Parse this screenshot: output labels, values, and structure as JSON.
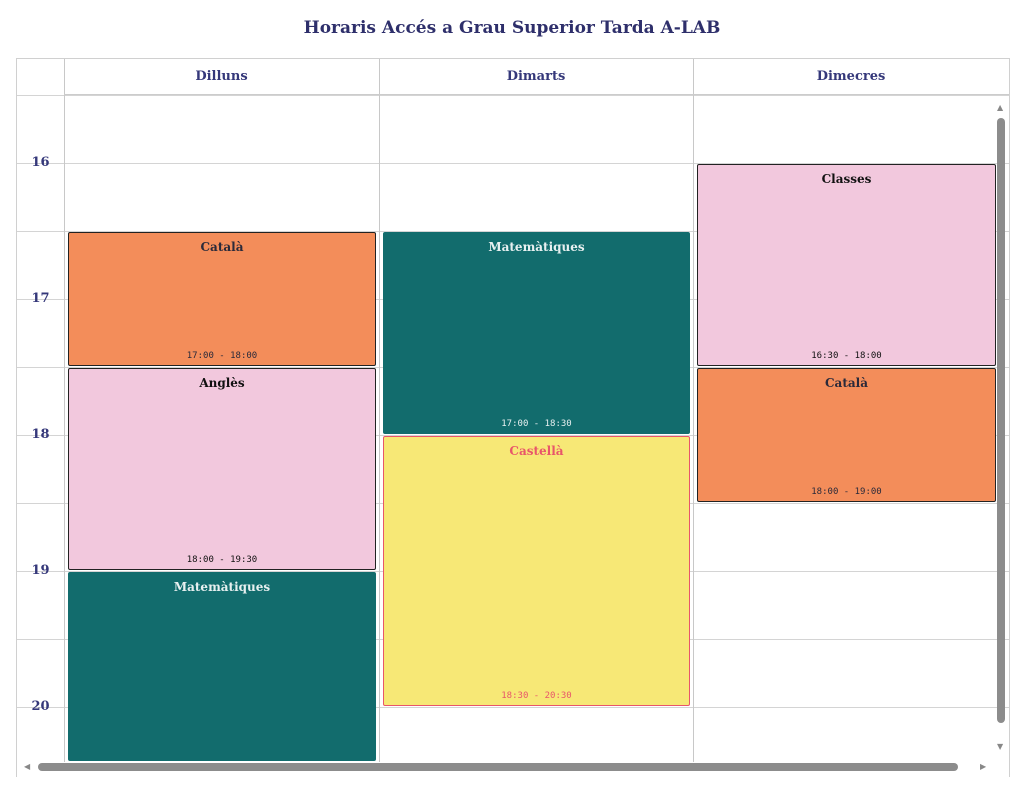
{
  "title": "Horaris Accés a Grau Superior Tarda  A-LAB",
  "days": [
    "Dilluns",
    "Dimarts",
    "Dimecres"
  ],
  "hours": [
    "16",
    "17",
    "18",
    "19",
    "20"
  ],
  "events": [
    {
      "day": 0,
      "name": "Català",
      "time": "17:00 - 18:00",
      "start": 17,
      "end": 18,
      "bg": "#f38d5a",
      "fg": "#2a2a3a",
      "border": "#222"
    },
    {
      "day": 0,
      "name": "Anglès",
      "time": "18:00 - 19:30",
      "start": 18,
      "end": 19.5,
      "bg": "#f2c8dd",
      "fg": "#111",
      "border": "#222"
    },
    {
      "day": 0,
      "name": "Matemàtiques",
      "time": "",
      "start": 19.5,
      "end": 21.5,
      "bg": "#126c6d",
      "fg": "#e8f0f0",
      "border": "#126c6d"
    },
    {
      "day": 1,
      "name": "Matemàtiques",
      "time": "17:00 - 18:30",
      "start": 17,
      "end": 18.5,
      "bg": "#126c6d",
      "fg": "#e8f0f0",
      "border": "#126c6d"
    },
    {
      "day": 1,
      "name": "Castellà",
      "time": "18:30 - 20:30",
      "start": 18.5,
      "end": 20.5,
      "bg": "#f7e876",
      "fg": "#e8566a",
      "border": "#e8566a"
    },
    {
      "day": 2,
      "name": "Classes",
      "time": "16:30 - 18:00",
      "start": 16.5,
      "end": 18,
      "bg": "#f2c8dd",
      "fg": "#111",
      "border": "#222"
    },
    {
      "day": 2,
      "name": "Català",
      "time": "18:00 - 19:00",
      "start": 18,
      "end": 19,
      "bg": "#f38d5a",
      "fg": "#2a2a3a",
      "border": "#222"
    }
  ]
}
